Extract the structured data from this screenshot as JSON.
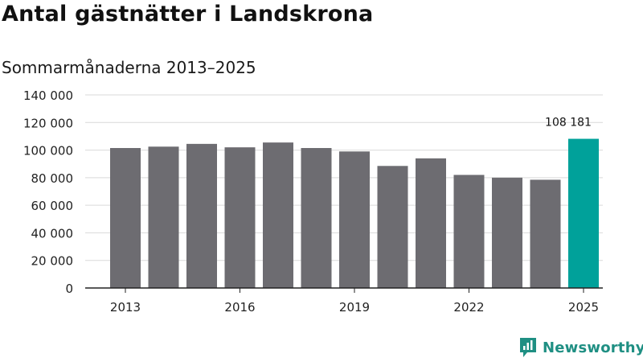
{
  "title": "Antal gästnätter i Landskrona",
  "subtitle": "Sommarmånaderna 2013–2025",
  "brand": {
    "name": "Newsworthy",
    "logo_icon": "newsworthy-logo-icon"
  },
  "colors": {
    "bar": "#6d6c71",
    "highlight": "#00a19a",
    "axis": "#222222",
    "grid": "#d9d9d9",
    "brand": "#1f8f83"
  },
  "chart_data": {
    "type": "bar",
    "title": "Antal gästnätter i Landskrona",
    "subtitle": "Sommarmånaderna 2013–2025",
    "categories": [
      "2013",
      "2014",
      "2015",
      "2016",
      "2017",
      "2018",
      "2019",
      "2020",
      "2021",
      "2022",
      "2023",
      "2024",
      "2025"
    ],
    "values": [
      101500,
      102500,
      104500,
      102000,
      105500,
      101500,
      99000,
      88500,
      94000,
      82000,
      80000,
      78500,
      108181
    ],
    "highlight_index": 12,
    "data_labels": [
      {
        "index": 12,
        "text": "108 181"
      }
    ],
    "x_tick_labels": [
      "2013",
      "2016",
      "2019",
      "2022",
      "2025"
    ],
    "y_tick_labels": [
      "0",
      "20 000",
      "40 000",
      "60 000",
      "80 000",
      "100 000",
      "120 000",
      "140 000"
    ],
    "ylim": [
      0,
      140000
    ],
    "xlabel": "",
    "ylabel": "",
    "grid": true,
    "legend": false
  }
}
